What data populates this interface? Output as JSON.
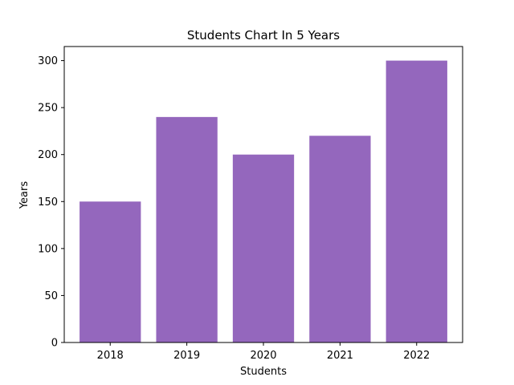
{
  "chart_data": {
    "type": "bar",
    "title": "Students Chart In 5 Years",
    "xlabel": "Students",
    "ylabel": "Years",
    "categories": [
      "2018",
      "2019",
      "2020",
      "2021",
      "2022"
    ],
    "values": [
      150,
      240,
      200,
      220,
      300
    ],
    "ylim": [
      0,
      315
    ],
    "yticks": [
      0,
      50,
      100,
      150,
      200,
      250,
      300
    ],
    "bar_color": "#9467bd",
    "grid": false,
    "legend": "none"
  }
}
